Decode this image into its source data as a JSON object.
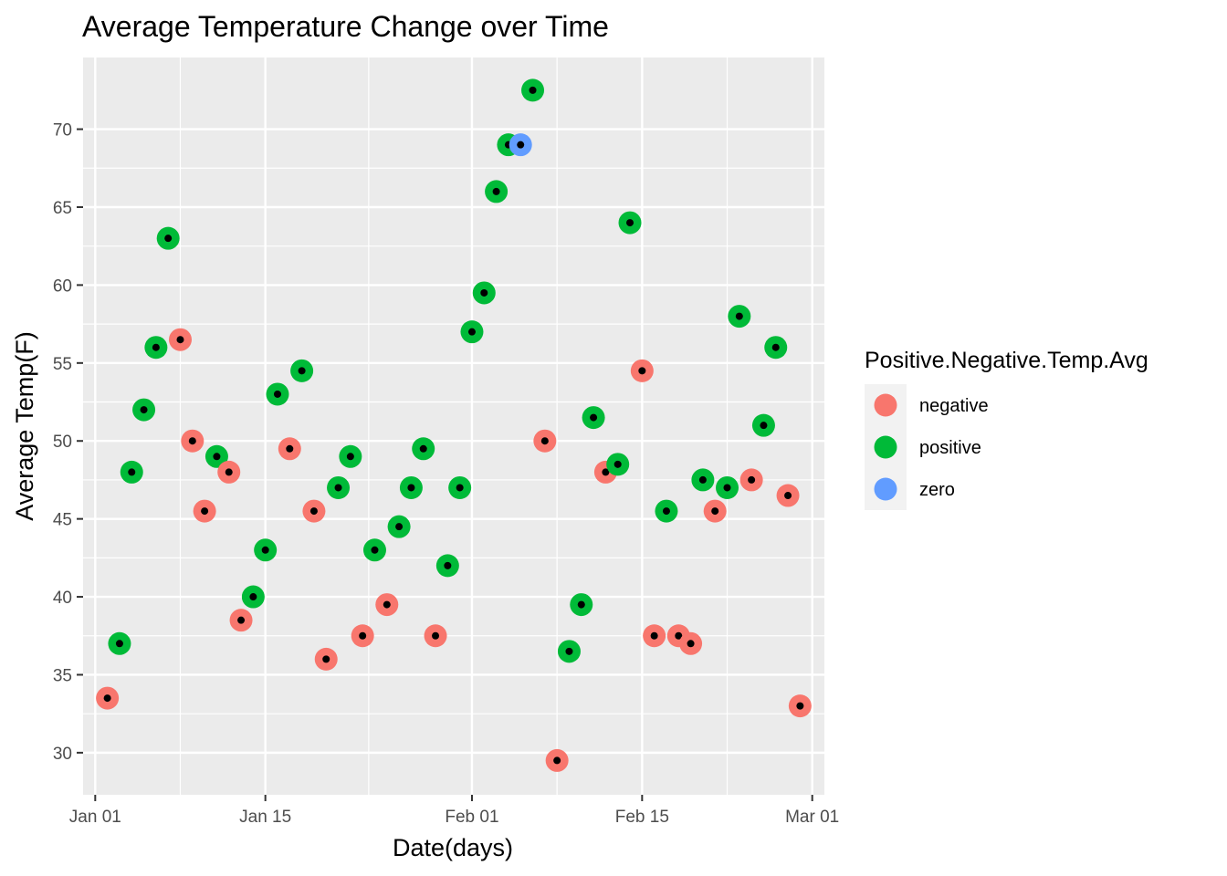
{
  "chart_data": {
    "type": "scatter",
    "title": "Average Temperature Change over Time",
    "xlabel": "Date(days)",
    "ylabel": "Average Temp(F)",
    "x_ticks": [
      {
        "date": "2023-01-01",
        "label": "Jan 01"
      },
      {
        "date": "2023-01-15",
        "label": "Jan 15"
      },
      {
        "date": "2023-02-01",
        "label": "Feb 01"
      },
      {
        "date": "2023-02-15",
        "label": "Feb 15"
      },
      {
        "date": "2023-03-01",
        "label": "Mar 01"
      }
    ],
    "y_ticks": [
      30,
      35,
      40,
      45,
      50,
      55,
      60,
      65,
      70
    ],
    "xlim": [
      "2022-12-31",
      "2023-03-02"
    ],
    "ylim": [
      27.3,
      74.6
    ],
    "grid": true,
    "legend": {
      "title": "Positive.Negative.Temp.Avg",
      "placement": "right",
      "items": [
        {
          "label": "negative",
          "color": "#F8766D"
        },
        {
          "label": "positive",
          "color": "#00BA38"
        },
        {
          "label": "zero",
          "color": "#619CFF"
        }
      ]
    },
    "inner_point_color": "#000000",
    "points": [
      {
        "date": "2023-01-02",
        "value": 33.5,
        "group": "negative"
      },
      {
        "date": "2023-01-03",
        "value": 37,
        "group": "positive"
      },
      {
        "date": "2023-01-04",
        "value": 48,
        "group": "positive"
      },
      {
        "date": "2023-01-05",
        "value": 52,
        "group": "positive"
      },
      {
        "date": "2023-01-06",
        "value": 56,
        "group": "positive"
      },
      {
        "date": "2023-01-07",
        "value": 63,
        "group": "positive"
      },
      {
        "date": "2023-01-08",
        "value": 56.5,
        "group": "negative"
      },
      {
        "date": "2023-01-09",
        "value": 50,
        "group": "negative"
      },
      {
        "date": "2023-01-10",
        "value": 45.5,
        "group": "negative"
      },
      {
        "date": "2023-01-11",
        "value": 49,
        "group": "positive"
      },
      {
        "date": "2023-01-12",
        "value": 48,
        "group": "negative"
      },
      {
        "date": "2023-01-13",
        "value": 38.5,
        "group": "negative"
      },
      {
        "date": "2023-01-14",
        "value": 40,
        "group": "positive"
      },
      {
        "date": "2023-01-15",
        "value": 43,
        "group": "positive"
      },
      {
        "date": "2023-01-16",
        "value": 53,
        "group": "positive"
      },
      {
        "date": "2023-01-17",
        "value": 49.5,
        "group": "negative"
      },
      {
        "date": "2023-01-18",
        "value": 54.5,
        "group": "positive"
      },
      {
        "date": "2023-01-19",
        "value": 45.5,
        "group": "negative"
      },
      {
        "date": "2023-01-20",
        "value": 36,
        "group": "negative"
      },
      {
        "date": "2023-01-21",
        "value": 47,
        "group": "positive"
      },
      {
        "date": "2023-01-22",
        "value": 49,
        "group": "positive"
      },
      {
        "date": "2023-01-23",
        "value": 37.5,
        "group": "negative"
      },
      {
        "date": "2023-01-24",
        "value": 43,
        "group": "positive"
      },
      {
        "date": "2023-01-25",
        "value": 39.5,
        "group": "negative"
      },
      {
        "date": "2023-01-26",
        "value": 44.5,
        "group": "positive"
      },
      {
        "date": "2023-01-27",
        "value": 47,
        "group": "positive"
      },
      {
        "date": "2023-01-28",
        "value": 49.5,
        "group": "positive"
      },
      {
        "date": "2023-01-29",
        "value": 37.5,
        "group": "negative"
      },
      {
        "date": "2023-01-30",
        "value": 42,
        "group": "positive"
      },
      {
        "date": "2023-01-31",
        "value": 47,
        "group": "positive"
      },
      {
        "date": "2023-02-01",
        "value": 57,
        "group": "positive"
      },
      {
        "date": "2023-02-02",
        "value": 59.5,
        "group": "positive"
      },
      {
        "date": "2023-02-03",
        "value": 66,
        "group": "positive"
      },
      {
        "date": "2023-02-04",
        "value": 69,
        "group": "positive"
      },
      {
        "date": "2023-02-05",
        "value": 69,
        "group": "zero"
      },
      {
        "date": "2023-02-06",
        "value": 72.5,
        "group": "positive"
      },
      {
        "date": "2023-02-07",
        "value": 50,
        "group": "negative"
      },
      {
        "date": "2023-02-08",
        "value": 29.5,
        "group": "negative"
      },
      {
        "date": "2023-02-09",
        "value": 36.5,
        "group": "positive"
      },
      {
        "date": "2023-02-10",
        "value": 39.5,
        "group": "positive"
      },
      {
        "date": "2023-02-11",
        "value": 51.5,
        "group": "positive"
      },
      {
        "date": "2023-02-12",
        "value": 48,
        "group": "negative"
      },
      {
        "date": "2023-02-13",
        "value": 48.5,
        "group": "positive"
      },
      {
        "date": "2023-02-14",
        "value": 64,
        "group": "positive"
      },
      {
        "date": "2023-02-15",
        "value": 54.5,
        "group": "negative"
      },
      {
        "date": "2023-02-16",
        "value": 37.5,
        "group": "negative"
      },
      {
        "date": "2023-02-17",
        "value": 45.5,
        "group": "positive"
      },
      {
        "date": "2023-02-18",
        "value": 37.5,
        "group": "negative"
      },
      {
        "date": "2023-02-19",
        "value": 37,
        "group": "negative"
      },
      {
        "date": "2023-02-20",
        "value": 47.5,
        "group": "positive"
      },
      {
        "date": "2023-02-21",
        "value": 45.5,
        "group": "negative"
      },
      {
        "date": "2023-02-22",
        "value": 47,
        "group": "positive"
      },
      {
        "date": "2023-02-23",
        "value": 58,
        "group": "positive"
      },
      {
        "date": "2023-02-24",
        "value": 47.5,
        "group": "negative"
      },
      {
        "date": "2023-02-25",
        "value": 51,
        "group": "positive"
      },
      {
        "date": "2023-02-26",
        "value": 56,
        "group": "positive"
      },
      {
        "date": "2023-02-27",
        "value": 46.5,
        "group": "negative"
      },
      {
        "date": "2023-02-28",
        "value": 33,
        "group": "negative"
      }
    ]
  }
}
